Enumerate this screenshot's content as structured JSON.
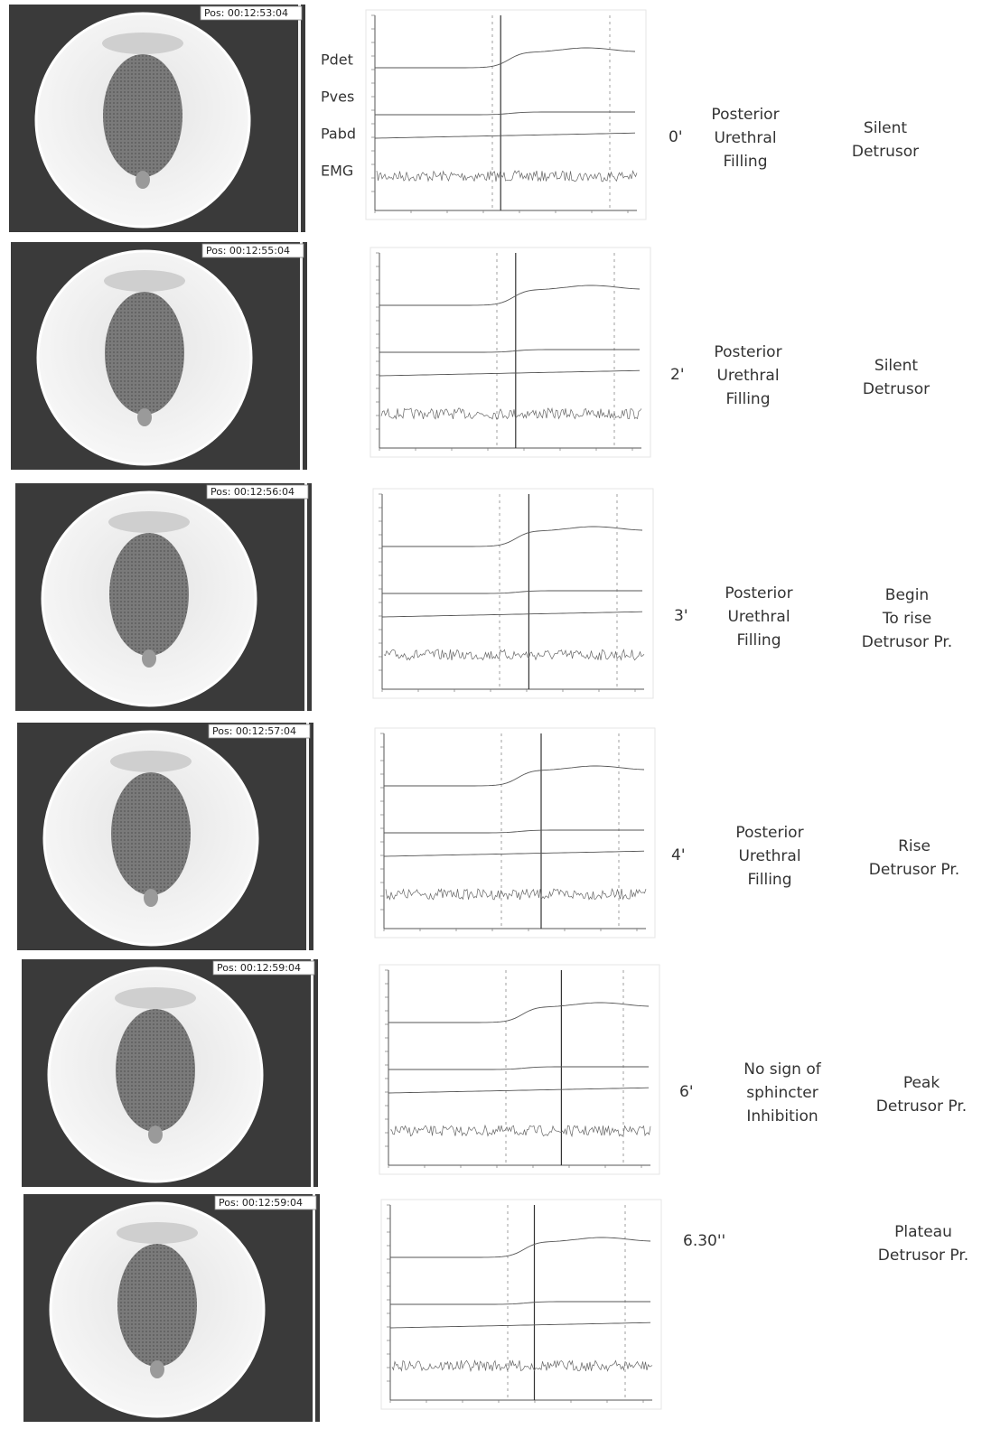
{
  "channels": [
    "Pdet",
    "Pves",
    "Pabd",
    "EMG"
  ],
  "rows": [
    {
      "pos": "Pos: 00:12:53:04",
      "time": "0'",
      "phase": [
        "Posterior",
        "Urethral",
        "Filling"
      ],
      "detrusor": [
        "Silent",
        "Detrusor"
      ]
    },
    {
      "pos": "Pos: 00:12:55:04",
      "time": "2'",
      "phase": [
        "Posterior",
        "Urethral",
        "Filling"
      ],
      "detrusor": [
        "Silent",
        "Detrusor"
      ]
    },
    {
      "pos": "Pos: 00:12:56:04",
      "time": "3'",
      "phase": [
        "Posterior",
        "Urethral",
        "Filling"
      ],
      "detrusor": [
        "Begin",
        "To rise",
        "Detrusor Pr."
      ]
    },
    {
      "pos": "Pos: 00:12:57:04",
      "time": "4'",
      "phase": [
        "Posterior",
        "Urethral",
        "Filling"
      ],
      "detrusor": [
        "Rise",
        "Detrusor Pr."
      ]
    },
    {
      "pos": "Pos: 00:12:59:04",
      "time": "6'",
      "phase": [
        "No sign of",
        "sphincter",
        "Inhibition"
      ],
      "detrusor": [
        "Peak",
        "Detrusor Pr."
      ]
    },
    {
      "pos": "Pos: 00:12:59:04",
      "time": "6.30''",
      "phase": [],
      "detrusor": [
        "Plateau",
        "Detrusor Pr."
      ]
    }
  ]
}
